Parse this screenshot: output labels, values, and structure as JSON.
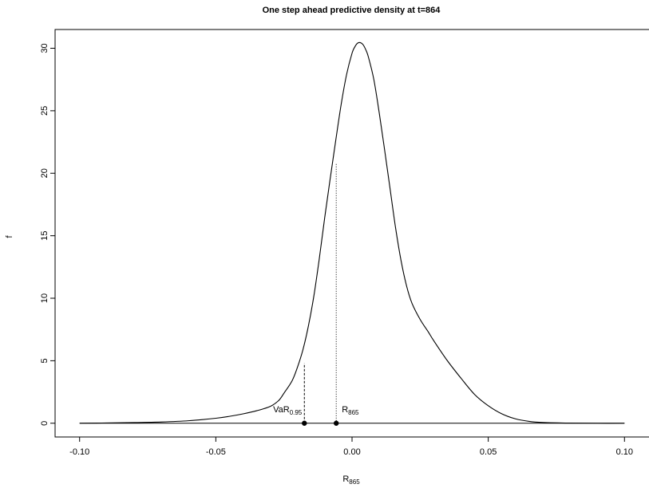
{
  "chart_data": {
    "type": "line",
    "title": "One step ahead predictive density at t=864",
    "xlabel": {
      "main": "R",
      "sub": "865"
    },
    "ylabel": "f",
    "xlim": [
      -0.109,
      0.109
    ],
    "ylim": [
      -1.1,
      31.5
    ],
    "x_ticks": [
      -0.1,
      -0.05,
      0.0,
      0.05,
      0.1
    ],
    "x_tick_labels": [
      "-0.10",
      "-0.05",
      "0.00",
      "0.05",
      "0.10"
    ],
    "y_ticks": [
      0,
      5,
      10,
      15,
      20,
      25,
      30
    ],
    "y_tick_labels": [
      "0",
      "5",
      "10",
      "15",
      "20",
      "25",
      "30"
    ],
    "grid": false,
    "series": [
      {
        "x": [
          -0.1,
          -0.09,
          -0.08,
          -0.07,
          -0.06,
          -0.05,
          -0.045,
          -0.04,
          -0.035,
          -0.03,
          -0.027,
          -0.025,
          -0.022,
          -0.02,
          -0.018,
          -0.016,
          -0.014,
          -0.012,
          -0.01,
          -0.008,
          -0.006,
          -0.004,
          -0.002,
          0.0,
          0.001,
          0.002,
          0.003,
          0.004,
          0.005,
          0.006,
          0.008,
          0.01,
          0.012,
          0.014,
          0.016,
          0.018,
          0.02,
          0.022,
          0.025,
          0.028,
          0.03,
          0.035,
          0.04,
          0.045,
          0.05,
          0.055,
          0.06,
          0.065,
          0.07,
          0.08,
          0.09,
          0.1
        ],
        "y": [
          0.0,
          0.02,
          0.05,
          0.1,
          0.2,
          0.4,
          0.55,
          0.75,
          1.0,
          1.35,
          1.8,
          2.4,
          3.4,
          4.5,
          5.9,
          7.8,
          10.2,
          13.2,
          16.5,
          19.6,
          22.6,
          25.5,
          27.9,
          29.6,
          30.1,
          30.4,
          30.45,
          30.3,
          29.9,
          29.3,
          27.5,
          24.8,
          21.8,
          18.7,
          15.6,
          13.0,
          11.0,
          9.6,
          8.3,
          7.3,
          6.6,
          5.0,
          3.6,
          2.3,
          1.4,
          0.75,
          0.35,
          0.15,
          0.06,
          0.01,
          0.0,
          0.0
        ]
      }
    ],
    "annotations": [
      {
        "label_main": "VaR",
        "label_sub": "0.95",
        "x": -0.0175,
        "y_top": 4.8,
        "line_style": "dashed"
      },
      {
        "label_main": "R",
        "label_sub": "865",
        "x": -0.0058,
        "y_top": 20.8,
        "line_style": "dotted"
      }
    ]
  }
}
